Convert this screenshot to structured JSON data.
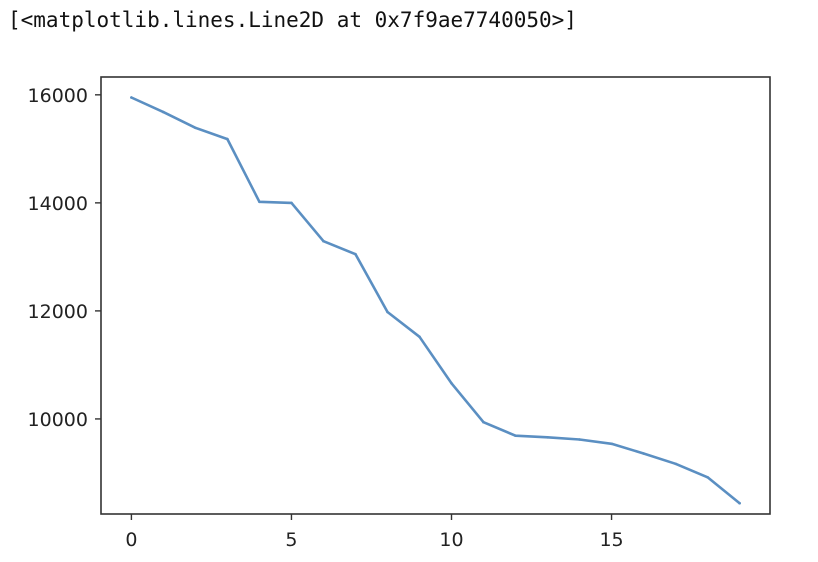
{
  "output_text": "[<matplotlib.lines.Line2D at 0x7f9ae7740050>]",
  "chart_data": {
    "type": "line",
    "x": [
      0,
      1,
      2,
      3,
      4,
      5,
      6,
      7,
      8,
      9,
      10,
      11,
      12,
      13,
      14,
      15,
      16,
      17,
      18,
      19
    ],
    "series": [
      {
        "values": [
          15950,
          15680,
          15390,
          15180,
          14020,
          14000,
          13290,
          13050,
          11980,
          11520,
          10660,
          9940,
          9690,
          9660,
          9620,
          9540,
          9360,
          9170,
          8920,
          8440
        ],
        "color": "#5b8fc2"
      }
    ],
    "xlim": [
      -0.95,
      19.95
    ],
    "ylim": [
      8240,
      16330
    ],
    "xticks": [
      0,
      5,
      10,
      15
    ],
    "yticks": [
      10000,
      12000,
      14000,
      16000
    ],
    "grid": false,
    "title": "",
    "xlabel": "",
    "ylabel": ""
  }
}
